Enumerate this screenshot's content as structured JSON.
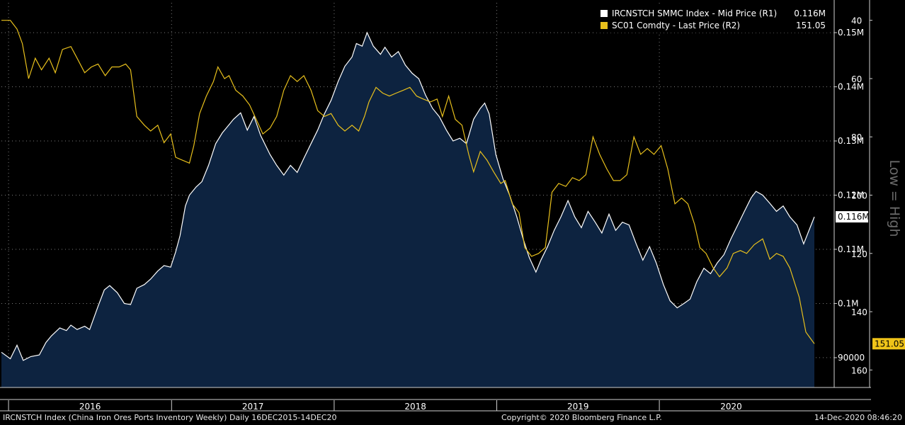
{
  "chart_data": {
    "type": "area",
    "x_ticks": [
      "2016",
      "2017",
      "2018",
      "2019",
      "2020"
    ],
    "x_range": [
      "2015-12-16",
      "2020-12-14"
    ],
    "y_right1": {
      "tick_labels": [
        "90000",
        "0.1M",
        "0.11M",
        "0.12M",
        "0.13M",
        "0.14M",
        "0.15M"
      ],
      "tick_values": [
        90000,
        100000,
        110000,
        120000,
        130000,
        140000,
        150000
      ],
      "range": [
        84500,
        155500
      ]
    },
    "y_right2": {
      "tick_labels": [
        "40",
        "60",
        "80",
        "100",
        "120",
        "140",
        "160"
      ],
      "tick_values": [
        40,
        60,
        80,
        100,
        120,
        140,
        160
      ],
      "range": [
        34,
        166
      ],
      "inverted": true,
      "axis_title": "Low = High"
    },
    "series": [
      {
        "name": "IRCNSTCH SMMC Index - Mid Price (R1)",
        "axis": "R1",
        "color": "#ffffff",
        "fill": "#0d2340",
        "last_label": "0.116M",
        "points": [
          [
            "2015-12-16",
            91000
          ],
          [
            "2016-01-05",
            89800
          ],
          [
            "2016-01-20",
            92300
          ],
          [
            "2016-02-03",
            89500
          ],
          [
            "2016-02-20",
            90200
          ],
          [
            "2016-03-10",
            90500
          ],
          [
            "2016-03-25",
            92800
          ],
          [
            "2016-04-06",
            94000
          ],
          [
            "2016-04-25",
            95500
          ],
          [
            "2016-05-10",
            95000
          ],
          [
            "2016-05-20",
            96000
          ],
          [
            "2016-06-03",
            95200
          ],
          [
            "2016-06-20",
            95800
          ],
          [
            "2016-07-01",
            95200
          ],
          [
            "2016-07-20",
            99500
          ],
          [
            "2016-08-03",
            102500
          ],
          [
            "2016-08-15",
            103300
          ],
          [
            "2016-09-01",
            102000
          ],
          [
            "2016-09-17",
            100000
          ],
          [
            "2016-10-01",
            99800
          ],
          [
            "2016-10-15",
            102800
          ],
          [
            "2016-11-01",
            103500
          ],
          [
            "2016-11-15",
            104500
          ],
          [
            "2016-12-01",
            106000
          ],
          [
            "2016-12-15",
            107000
          ],
          [
            "2016-12-30",
            106700
          ],
          [
            "2017-01-10",
            109500
          ],
          [
            "2017-01-20",
            112500
          ],
          [
            "2017-02-01",
            118000
          ],
          [
            "2017-02-10",
            120000
          ],
          [
            "2017-02-25",
            121500
          ],
          [
            "2017-03-10",
            122500
          ],
          [
            "2017-03-25",
            125500
          ],
          [
            "2017-04-10",
            129500
          ],
          [
            "2017-04-25",
            131500
          ],
          [
            "2017-05-10",
            133000
          ],
          [
            "2017-05-20",
            134000
          ],
          [
            "2017-06-05",
            135200
          ],
          [
            "2017-06-20",
            132000
          ],
          [
            "2017-07-05",
            134500
          ],
          [
            "2017-07-20",
            131000
          ],
          [
            "2017-08-10",
            127500
          ],
          [
            "2017-08-25",
            125500
          ],
          [
            "2017-09-10",
            123700
          ],
          [
            "2017-09-25",
            125500
          ],
          [
            "2017-10-10",
            124200
          ],
          [
            "2017-10-25",
            126800
          ],
          [
            "2017-11-10",
            129500
          ],
          [
            "2017-11-25",
            132000
          ],
          [
            "2017-12-10",
            135000
          ],
          [
            "2017-12-25",
            137500
          ],
          [
            "2018-01-10",
            141000
          ],
          [
            "2018-01-25",
            143800
          ],
          [
            "2018-02-10",
            145500
          ],
          [
            "2018-02-20",
            148000
          ],
          [
            "2018-03-05",
            147500
          ],
          [
            "2018-03-16",
            150000
          ],
          [
            "2018-03-30",
            147500
          ],
          [
            "2018-04-15",
            146000
          ],
          [
            "2018-04-25",
            147300
          ],
          [
            "2018-05-10",
            145500
          ],
          [
            "2018-05-25",
            146500
          ],
          [
            "2018-06-10",
            144000
          ],
          [
            "2018-06-25",
            142500
          ],
          [
            "2018-07-10",
            141500
          ],
          [
            "2018-07-25",
            138500
          ],
          [
            "2018-08-10",
            136000
          ],
          [
            "2018-08-25",
            134500
          ],
          [
            "2018-09-10",
            132000
          ],
          [
            "2018-09-25",
            130000
          ],
          [
            "2018-10-10",
            130500
          ],
          [
            "2018-10-25",
            129500
          ],
          [
            "2018-11-10",
            134000
          ],
          [
            "2018-11-25",
            136000
          ],
          [
            "2018-12-05",
            137000
          ],
          [
            "2018-12-15",
            135000
          ],
          [
            "2018-12-30",
            127500
          ],
          [
            "2019-01-15",
            123000
          ],
          [
            "2019-01-30",
            120000
          ],
          [
            "2019-02-15",
            116000
          ],
          [
            "2019-03-01",
            112000
          ],
          [
            "2019-03-15",
            108500
          ],
          [
            "2019-03-30",
            105800
          ],
          [
            "2019-04-10",
            108000
          ],
          [
            "2019-04-25",
            110500
          ],
          [
            "2019-05-10",
            113500
          ],
          [
            "2019-05-25",
            116000
          ],
          [
            "2019-06-10",
            119000
          ],
          [
            "2019-06-25",
            116000
          ],
          [
            "2019-07-10",
            114000
          ],
          [
            "2019-07-25",
            117000
          ],
          [
            "2019-08-10",
            115000
          ],
          [
            "2019-08-25",
            113000
          ],
          [
            "2019-09-10",
            116500
          ],
          [
            "2019-09-25",
            113500
          ],
          [
            "2019-10-10",
            115000
          ],
          [
            "2019-10-25",
            114500
          ],
          [
            "2019-11-10",
            111000
          ],
          [
            "2019-11-25",
            108000
          ],
          [
            "2019-12-10",
            110500
          ],
          [
            "2019-12-25",
            107500
          ],
          [
            "2020-01-10",
            103500
          ],
          [
            "2020-01-25",
            100500
          ],
          [
            "2020-02-10",
            99200
          ],
          [
            "2020-02-25",
            100000
          ],
          [
            "2020-03-10",
            100800
          ],
          [
            "2020-03-25",
            104000
          ],
          [
            "2020-04-10",
            106500
          ],
          [
            "2020-04-25",
            105500
          ],
          [
            "2020-05-10",
            107500
          ],
          [
            "2020-05-25",
            109000
          ],
          [
            "2020-06-10",
            112000
          ],
          [
            "2020-06-25",
            114500
          ],
          [
            "2020-07-10",
            117000
          ],
          [
            "2020-07-25",
            119500
          ],
          [
            "2020-08-05",
            120700
          ],
          [
            "2020-08-20",
            120000
          ],
          [
            "2020-09-05",
            118500
          ],
          [
            "2020-09-20",
            117000
          ],
          [
            "2020-10-05",
            118000
          ],
          [
            "2020-10-20",
            116000
          ],
          [
            "2020-11-05",
            114500
          ],
          [
            "2020-11-20",
            111000
          ],
          [
            "2020-12-14",
            116000
          ]
        ]
      },
      {
        "name": "SC01 Comdty - Last Price (R2)",
        "axis": "R2",
        "color": "#e8c01c",
        "last_label": "151.05",
        "points": [
          [
            "2015-12-16",
            40
          ],
          [
            "2016-01-05",
            40
          ],
          [
            "2016-01-20",
            43
          ],
          [
            "2016-02-01",
            48
          ],
          [
            "2016-02-15",
            60
          ],
          [
            "2016-03-01",
            53
          ],
          [
            "2016-03-15",
            57
          ],
          [
            "2016-04-01",
            53
          ],
          [
            "2016-04-15",
            58
          ],
          [
            "2016-05-01",
            50
          ],
          [
            "2016-05-20",
            49
          ],
          [
            "2016-06-03",
            53
          ],
          [
            "2016-06-20",
            58
          ],
          [
            "2016-07-05",
            56
          ],
          [
            "2016-07-20",
            55
          ],
          [
            "2016-08-05",
            59
          ],
          [
            "2016-08-20",
            56
          ],
          [
            "2016-09-05",
            56
          ],
          [
            "2016-09-20",
            55
          ],
          [
            "2016-10-01",
            57
          ],
          [
            "2016-10-15",
            73
          ],
          [
            "2016-11-01",
            76
          ],
          [
            "2016-11-15",
            78
          ],
          [
            "2016-12-01",
            76
          ],
          [
            "2016-12-15",
            82
          ],
          [
            "2016-12-30",
            79
          ],
          [
            "2017-01-10",
            87
          ],
          [
            "2017-01-25",
            88
          ],
          [
            "2017-02-10",
            89
          ],
          [
            "2017-02-20",
            83
          ],
          [
            "2017-03-05",
            72
          ],
          [
            "2017-03-20",
            66
          ],
          [
            "2017-04-05",
            61
          ],
          [
            "2017-04-15",
            56
          ],
          [
            "2017-04-30",
            60
          ],
          [
            "2017-05-10",
            59
          ],
          [
            "2017-05-25",
            64
          ],
          [
            "2017-06-10",
            66
          ],
          [
            "2017-06-25",
            69
          ],
          [
            "2017-07-10",
            74
          ],
          [
            "2017-07-25",
            79
          ],
          [
            "2017-08-10",
            77
          ],
          [
            "2017-08-25",
            73
          ],
          [
            "2017-09-10",
            64
          ],
          [
            "2017-09-25",
            59
          ],
          [
            "2017-10-10",
            61
          ],
          [
            "2017-10-25",
            59
          ],
          [
            "2017-11-10",
            64
          ],
          [
            "2017-11-25",
            71
          ],
          [
            "2017-12-10",
            73
          ],
          [
            "2017-12-25",
            72
          ],
          [
            "2018-01-10",
            76
          ],
          [
            "2018-01-25",
            78
          ],
          [
            "2018-02-10",
            76
          ],
          [
            "2018-02-25",
            78
          ],
          [
            "2018-03-10",
            73
          ],
          [
            "2018-03-20",
            68
          ],
          [
            "2018-04-05",
            63
          ],
          [
            "2018-04-20",
            65
          ],
          [
            "2018-05-05",
            66
          ],
          [
            "2018-05-20",
            65
          ],
          [
            "2018-06-05",
            64
          ],
          [
            "2018-06-20",
            63
          ],
          [
            "2018-07-05",
            66
          ],
          [
            "2018-07-20",
            67
          ],
          [
            "2018-08-05",
            68
          ],
          [
            "2018-08-20",
            67
          ],
          [
            "2018-09-01",
            73
          ],
          [
            "2018-09-15",
            66
          ],
          [
            "2018-09-30",
            74
          ],
          [
            "2018-10-15",
            76
          ],
          [
            "2018-10-30",
            86
          ],
          [
            "2018-11-10",
            92
          ],
          [
            "2018-11-25",
            85
          ],
          [
            "2018-12-10",
            88
          ],
          [
            "2018-12-25",
            92
          ],
          [
            "2019-01-10",
            96
          ],
          [
            "2019-01-20",
            95
          ],
          [
            "2019-02-05",
            103
          ],
          [
            "2019-02-20",
            106
          ],
          [
            "2019-03-05",
            118
          ],
          [
            "2019-03-20",
            121
          ],
          [
            "2019-04-05",
            120
          ],
          [
            "2019-04-20",
            118
          ],
          [
            "2019-05-05",
            99
          ],
          [
            "2019-05-20",
            96
          ],
          [
            "2019-06-05",
            97
          ],
          [
            "2019-06-20",
            94
          ],
          [
            "2019-07-05",
            95
          ],
          [
            "2019-07-20",
            93
          ],
          [
            "2019-08-05",
            80
          ],
          [
            "2019-08-20",
            86
          ],
          [
            "2019-09-05",
            91
          ],
          [
            "2019-09-20",
            95
          ],
          [
            "2019-10-05",
            95
          ],
          [
            "2019-10-20",
            93
          ],
          [
            "2019-11-05",
            80
          ],
          [
            "2019-11-20",
            86
          ],
          [
            "2019-12-05",
            84
          ],
          [
            "2019-12-20",
            86
          ],
          [
            "2020-01-05",
            83
          ],
          [
            "2020-01-20",
            91
          ],
          [
            "2020-02-05",
            103
          ],
          [
            "2020-02-20",
            101
          ],
          [
            "2020-03-05",
            103
          ],
          [
            "2020-03-20",
            110
          ],
          [
            "2020-04-01",
            118
          ],
          [
            "2020-04-15",
            120
          ],
          [
            "2020-05-01",
            125
          ],
          [
            "2020-05-15",
            128
          ],
          [
            "2020-06-01",
            125
          ],
          [
            "2020-06-15",
            120
          ],
          [
            "2020-07-01",
            119
          ],
          [
            "2020-07-15",
            120
          ],
          [
            "2020-08-01",
            117
          ],
          [
            "2020-08-20",
            115
          ],
          [
            "2020-09-05",
            122
          ],
          [
            "2020-09-20",
            120
          ],
          [
            "2020-10-05",
            121
          ],
          [
            "2020-10-20",
            125
          ],
          [
            "2020-11-10",
            135
          ],
          [
            "2020-11-25",
            147
          ],
          [
            "2020-12-14",
            151
          ]
        ]
      }
    ]
  },
  "legend": {
    "series1_name": "IRCNSTCH SMMC Index - Mid Price (R1)",
    "series1_value": "0.116M",
    "series2_name": "SC01 Comdty - Last Price (R2)",
    "series2_value": "151.05"
  },
  "footer": {
    "left": "IRCNSTCH Index (China Iron Ores Ports Inventory Weekly)  Daily 16DEC2015-14DEC20",
    "center": "Copyright© 2020 Bloomberg Finance L.P.",
    "right": "14-Dec-2020 08:46:20"
  },
  "axis_title": "Low = High",
  "colors": {
    "background": "#000000",
    "area_fill": "#0d2340",
    "line1": "#ffffff",
    "line2": "#e8c01c",
    "grid": "#7a7a7a",
    "badge2": "#f0c419"
  }
}
